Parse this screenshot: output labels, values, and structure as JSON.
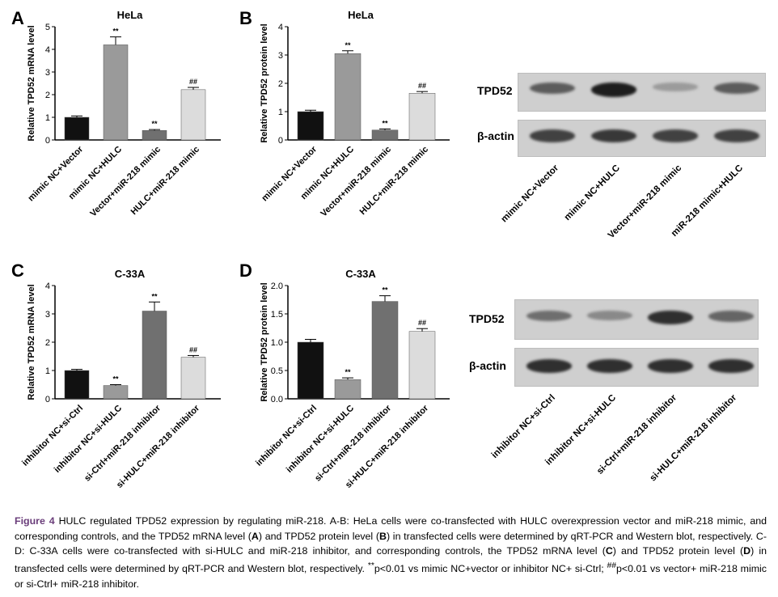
{
  "panels": [
    {
      "letter": "A",
      "chart_data": {
        "type": "bar",
        "title": "HeLa",
        "ylabel": "Relative TPD52 mRNA level",
        "ylim": [
          0,
          5
        ],
        "yticks": [
          "0",
          "1",
          "2",
          "3",
          "4",
          "5"
        ],
        "categories": [
          "mimic NC+Vector",
          "mimic NC+HULC",
          "Vector+miR-218 mimic",
          "HULC+miR-218 mimic"
        ],
        "values": [
          1.0,
          4.2,
          0.42,
          2.22
        ],
        "errors": [
          0.06,
          0.35,
          0.04,
          0.1
        ],
        "annotations": [
          "",
          "**",
          "**",
          "##"
        ],
        "colors": [
          "#111111",
          "#9a9a9a",
          "#707070",
          "#dcdcdc"
        ]
      }
    },
    {
      "letter": "B",
      "chart_data": {
        "type": "bar",
        "title": "HeLa",
        "ylabel": "Relative TPD52 protein level",
        "ylim": [
          0,
          4
        ],
        "yticks": [
          "0",
          "1",
          "2",
          "3",
          "4"
        ],
        "categories": [
          "mimic NC+Vector",
          "mimic NC+HULC",
          "Vector+miR-218 mimic",
          "HULC+miR-218 mimic"
        ],
        "values": [
          1.0,
          3.05,
          0.35,
          1.65
        ],
        "errors": [
          0.05,
          0.1,
          0.04,
          0.06
        ],
        "annotations": [
          "",
          "**",
          "**",
          "##"
        ],
        "colors": [
          "#111111",
          "#9a9a9a",
          "#707070",
          "#dcdcdc"
        ]
      }
    },
    {
      "letter": "C",
      "chart_data": {
        "type": "bar",
        "title": "C-33A",
        "ylabel": "Relative TPD52 mRNA level",
        "ylim": [
          0,
          4
        ],
        "yticks": [
          "0",
          "1",
          "2",
          "3",
          "4"
        ],
        "categories": [
          "inhibitor NC+si-Ctrl",
          "inhibitor NC+si-HULC",
          "si-Ctrl+miR-218 inhibitor",
          "si-HULC+miR-218 inhibitor"
        ],
        "values": [
          1.0,
          0.47,
          3.1,
          1.47
        ],
        "errors": [
          0.04,
          0.03,
          0.32,
          0.06
        ],
        "annotations": [
          "",
          "**",
          "**",
          "##"
        ],
        "colors": [
          "#111111",
          "#9a9a9a",
          "#707070",
          "#dcdcdc"
        ]
      }
    },
    {
      "letter": "D",
      "chart_data": {
        "type": "bar",
        "title": "C-33A",
        "ylabel": "Relative TPD52 protein level",
        "ylim": [
          0,
          2.0
        ],
        "yticks": [
          "0.0",
          "0.5",
          "1.0",
          "1.5",
          "2.0"
        ],
        "categories": [
          "inhibitor NC+si-Ctrl",
          "inhibitor NC+si-HULC",
          "si-Ctrl+miR-218 inhibitor",
          "si-HULC+miR-218 inhibitor"
        ],
        "values": [
          1.0,
          0.34,
          1.72,
          1.19
        ],
        "errors": [
          0.05,
          0.03,
          0.1,
          0.05
        ],
        "annotations": [
          "",
          "**",
          "**",
          "##"
        ],
        "colors": [
          "#111111",
          "#9a9a9a",
          "#707070",
          "#dcdcdc"
        ]
      }
    }
  ],
  "blots": [
    {
      "rows": [
        "TPD52",
        "β-actin"
      ],
      "lanes": [
        "mimic NC+Vector",
        "mimic NC+HULC",
        "Vector+miR-218 mimic",
        "miR-218 mimic+HULC"
      ],
      "tpd52_intensity": [
        0.6,
        0.95,
        0.25,
        0.6
      ],
      "actin_intensity": [
        0.75,
        0.8,
        0.75,
        0.75
      ]
    },
    {
      "rows": [
        "TPD52",
        "β-actin"
      ],
      "lanes": [
        "inhibitor NC+si-Ctrl",
        "inhibitor NC+si-HULC",
        "si-Ctrl+miR-218 inhibitor",
        "si-HULC+miR-218 inhibitor"
      ],
      "tpd52_intensity": [
        0.5,
        0.35,
        0.85,
        0.55
      ],
      "actin_intensity": [
        0.85,
        0.85,
        0.85,
        0.85
      ]
    }
  ],
  "caption": {
    "label": "Figure 4",
    "text_parts": [
      " HULC regulated TPD52 expression by regulating miR-218. A-B: HeLa cells were co-transfected with HULC overexpression vector and miR-218 mimic, and corresponding controls, and the TPD52 mRNA level (",
      "A",
      ") and TPD52 protein level (",
      "B",
      ") in transfected cells were determined by qRT-PCR and Western blot, respectively. C-D: C-33A cells were co-transfected with si-HULC and miR-218 inhibitor, and corresponding controls, the TPD52 mRNA level (",
      "C",
      ") and TPD52 protein level (",
      "D",
      ") in transfected cells were determined by qRT-PCR and Western blot, respectively. ",
      "**",
      "p<0.01 vs mimic NC+vector or inhibitor NC+ si-Ctrl; ",
      "##",
      "p<0.01 vs vector+ miR-218 mimic or si-Ctrl+ miR-218 inhibitor."
    ]
  }
}
